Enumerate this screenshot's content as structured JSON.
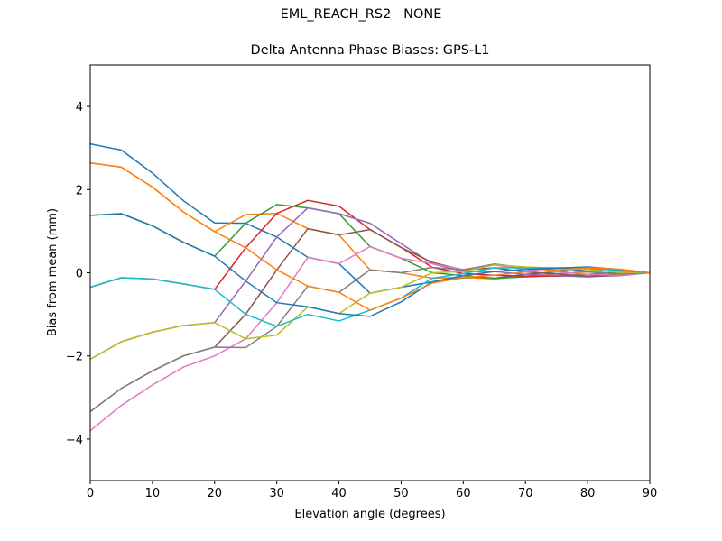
{
  "suptitle": "EML_REACH_RS2   NONE",
  "chart_data": {
    "type": "line",
    "title": "Delta Antenna Phase Biases: GPS-L1",
    "xlabel": "Elevation angle (degrees)",
    "ylabel": "Bias from mean (mm)",
    "xlim": [
      0,
      90
    ],
    "ylim": [
      -5,
      5
    ],
    "xticks": [
      0,
      10,
      20,
      30,
      40,
      50,
      60,
      70,
      80,
      90
    ],
    "yticks": [
      -4,
      -2,
      0,
      2,
      4
    ],
    "ytick_labels": [
      "−4",
      "−2",
      "0",
      "2",
      "4"
    ],
    "grid": false,
    "legend": "none",
    "x": [
      0,
      5,
      10,
      15,
      20,
      25,
      30,
      35,
      40,
      45,
      50,
      55,
      60,
      65,
      70,
      75,
      80,
      85,
      90
    ],
    "colors": [
      "#1f77b4",
      "#ff7f0e",
      "#2ca02c",
      "#d62728",
      "#9467bd",
      "#8c564b",
      "#e377c2",
      "#7f7f7f",
      "#bcbd22",
      "#17becf"
    ],
    "series": [
      {
        "values": [
          3.1,
          2.95,
          2.4,
          1.73,
          1.2,
          1.19,
          0.86,
          0.37,
          0.22,
          -0.49,
          -0.35,
          -0.22,
          -0.12,
          -0.13,
          -0.04,
          0.02,
          0.08,
          0.08,
          0
        ]
      },
      {
        "values": [
          2.64,
          2.54,
          2.06,
          1.46,
          0.99,
          1.4,
          1.43,
          1.06,
          0.91,
          0.07,
          0,
          -0.13,
          -0.11,
          -0.15,
          -0.08,
          -0.03,
          0.02,
          0.05,
          0
        ]
      },
      {
        "values": [
          1.38,
          1.42,
          1.13,
          0.73,
          0.4,
          1.19,
          1.64,
          1.56,
          1.42,
          0.63,
          0.35,
          0,
          -0.07,
          -0.13,
          -0.1,
          -0.07,
          -0.04,
          0.01,
          0
        ]
      },
      {
        "values": [
          -0.35,
          -0.12,
          -0.15,
          -0.27,
          -0.4,
          0.6,
          1.43,
          1.74,
          1.6,
          1.04,
          0.61,
          0.13,
          -0.02,
          -0.06,
          -0.08,
          -0.08,
          -0.08,
          -0.03,
          0
        ]
      },
      {
        "values": [
          -2.08,
          -1.66,
          -1.43,
          -1.27,
          -1.2,
          -0.2,
          0.86,
          1.56,
          1.42,
          1.19,
          0.7,
          0.22,
          0.03,
          0.03,
          -0.04,
          -0.07,
          -0.1,
          -0.06,
          0
        ]
      },
      {
        "values": [
          -3.34,
          -2.78,
          -2.36,
          -2.0,
          -1.79,
          -1.0,
          0.07,
          1.06,
          0.91,
          1.04,
          0.61,
          0.25,
          0.07,
          0.12,
          0.02,
          -0.03,
          -0.08,
          -0.07,
          0
        ]
      },
      {
        "values": [
          -3.8,
          -3.19,
          -2.7,
          -2.27,
          -2.0,
          -1.59,
          -0.72,
          0.37,
          0.22,
          0.63,
          0.35,
          0.22,
          0.08,
          0.19,
          0.08,
          0.02,
          -0.04,
          -0.06,
          0
        ]
      },
      {
        "values": [
          -3.34,
          -2.78,
          -2.36,
          -2.0,
          -1.79,
          -1.8,
          -1.29,
          -0.32,
          -0.47,
          0.07,
          0,
          0.13,
          0.07,
          0.21,
          0.12,
          0.07,
          0.02,
          -0.03,
          0
        ]
      },
      {
        "values": [
          -2.08,
          -1.66,
          -1.43,
          -1.27,
          -1.2,
          -1.59,
          -1.5,
          -0.82,
          -0.98,
          -0.49,
          -0.35,
          0,
          0.03,
          0.19,
          0.14,
          0.11,
          0.08,
          0.01,
          0
        ]
      },
      {
        "values": [
          -0.35,
          -0.12,
          -0.15,
          -0.27,
          -0.4,
          -1.0,
          -1.29,
          -1.0,
          -1.16,
          -0.9,
          -0.61,
          -0.13,
          -0.02,
          0.12,
          0.12,
          0.12,
          0.12,
          0.05,
          0
        ]
      },
      {
        "values": [
          1.38,
          1.42,
          1.13,
          0.73,
          0.4,
          -0.2,
          -0.72,
          -0.82,
          -0.98,
          -1.05,
          -0.7,
          -0.22,
          -0.07,
          0.03,
          0.08,
          0.11,
          0.14,
          0.08,
          0
        ]
      },
      {
        "values": [
          2.64,
          2.54,
          2.06,
          1.46,
          0.99,
          0.6,
          0.07,
          -0.32,
          -0.47,
          -0.9,
          -0.61,
          -0.25,
          -0.11,
          -0.06,
          0.02,
          0.07,
          0.12,
          0.09,
          0
        ]
      }
    ]
  }
}
